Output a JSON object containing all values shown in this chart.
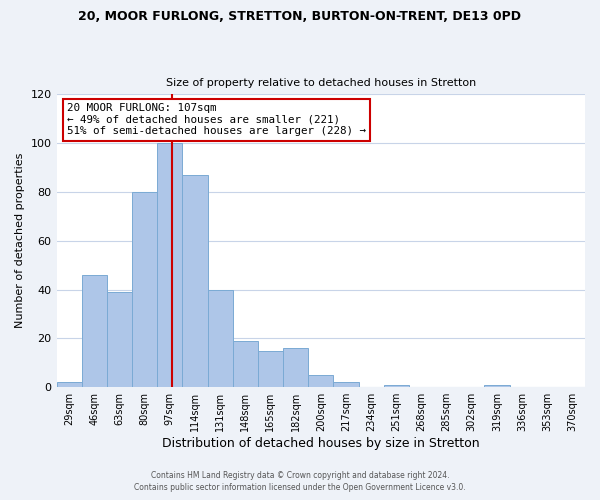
{
  "title_line1": "20, MOOR FURLONG, STRETTON, BURTON-ON-TRENT, DE13 0PD",
  "title_line2": "Size of property relative to detached houses in Stretton",
  "xlabel": "Distribution of detached houses by size in Stretton",
  "ylabel": "Number of detached properties",
  "bin_labels": [
    "29sqm",
    "46sqm",
    "63sqm",
    "80sqm",
    "97sqm",
    "114sqm",
    "131sqm",
    "148sqm",
    "165sqm",
    "182sqm",
    "200sqm",
    "217sqm",
    "234sqm",
    "251sqm",
    "268sqm",
    "285sqm",
    "302sqm",
    "319sqm",
    "336sqm",
    "353sqm",
    "370sqm"
  ],
  "bar_heights": [
    2,
    46,
    39,
    80,
    100,
    87,
    40,
    19,
    15,
    16,
    5,
    2,
    0,
    1,
    0,
    0,
    0,
    1,
    0,
    0,
    0
  ],
  "bar_color": "#aec6e8",
  "bar_edge_color": "#7baad4",
  "annotation_line1": "20 MOOR FURLONG: 107sqm",
  "annotation_line2": "← 49% of detached houses are smaller (221)",
  "annotation_line3": "51% of semi-detached houses are larger (228) →",
  "annotation_box_color": "#ffffff",
  "annotation_box_edge_color": "#cc0000",
  "vline_color": "#cc0000",
  "ylim": [
    0,
    120
  ],
  "yticks": [
    0,
    20,
    40,
    60,
    80,
    100,
    120
  ],
  "footer_line1": "Contains HM Land Registry data © Crown copyright and database right 2024.",
  "footer_line2": "Contains public sector information licensed under the Open Government Licence v3.0.",
  "background_color": "#eef2f8",
  "plot_background_color": "#ffffff",
  "grid_color": "#c8d4e8"
}
